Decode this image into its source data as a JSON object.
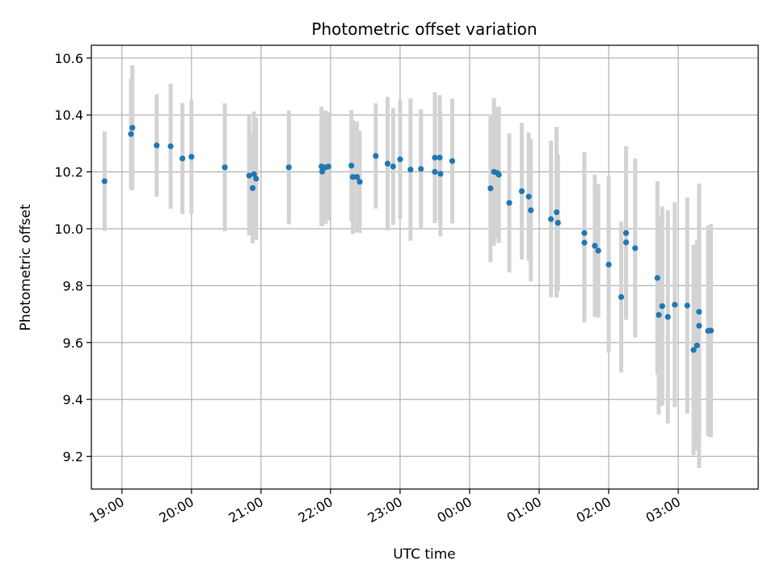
{
  "chart_data": {
    "type": "scatter",
    "title": "Photometric offset variation",
    "xlabel": "UTC time",
    "ylabel": "Photometric offset",
    "xlim": [
      -5.44,
      4.15
    ],
    "ylim": [
      9.085,
      10.645
    ],
    "grid": true,
    "x_ticks": [
      {
        "value": -5,
        "label": "19:00"
      },
      {
        "value": -4,
        "label": "20:00"
      },
      {
        "value": -3,
        "label": "21:00"
      },
      {
        "value": -2,
        "label": "22:00"
      },
      {
        "value": -1,
        "label": "23:00"
      },
      {
        "value": 0,
        "label": "00:00"
      },
      {
        "value": 1,
        "label": "01:00"
      },
      {
        "value": 2,
        "label": "02:00"
      },
      {
        "value": 3,
        "label": "03:00"
      }
    ],
    "y_ticks": [
      9.2,
      9.4,
      9.6,
      9.8,
      10.0,
      10.2,
      10.4,
      10.6
    ],
    "y_tick_labels": [
      "9.2",
      "9.4",
      "9.6",
      "9.8",
      "10.0",
      "10.2",
      "10.4",
      "10.6"
    ],
    "marker_color": "#1f77b4",
    "errorbar_color": "#d3d3d3",
    "series": [
      {
        "points": [
          {
            "x": -5.25,
            "y": 10.167,
            "err": 0.175
          },
          {
            "x": -4.87,
            "y": 10.333,
            "err": 0.195
          },
          {
            "x": -4.85,
            "y": 10.355,
            "err": 0.22
          },
          {
            "x": -4.5,
            "y": 10.293,
            "err": 0.18
          },
          {
            "x": -4.3,
            "y": 10.29,
            "err": 0.22
          },
          {
            "x": -4.13,
            "y": 10.247,
            "err": 0.195
          },
          {
            "x": -4.0,
            "y": 10.253,
            "err": 0.2
          },
          {
            "x": -3.52,
            "y": 10.216,
            "err": 0.225
          },
          {
            "x": -3.17,
            "y": 10.187,
            "err": 0.21
          },
          {
            "x": -3.12,
            "y": 10.143,
            "err": 0.195
          },
          {
            "x": -3.1,
            "y": 10.192,
            "err": 0.22
          },
          {
            "x": -3.07,
            "y": 10.176,
            "err": 0.215
          },
          {
            "x": -2.6,
            "y": 10.216,
            "err": 0.2
          },
          {
            "x": -2.13,
            "y": 10.219,
            "err": 0.21
          },
          {
            "x": -2.12,
            "y": 10.201,
            "err": 0.19
          },
          {
            "x": -2.07,
            "y": 10.216,
            "err": 0.2
          },
          {
            "x": -2.03,
            "y": 10.219,
            "err": 0.19
          },
          {
            "x": -1.7,
            "y": 10.222,
            "err": 0.195
          },
          {
            "x": -1.68,
            "y": 10.182,
            "err": 0.2
          },
          {
            "x": -1.62,
            "y": 10.182,
            "err": 0.195
          },
          {
            "x": -1.58,
            "y": 10.165,
            "err": 0.18
          },
          {
            "x": -1.35,
            "y": 10.256,
            "err": 0.185
          },
          {
            "x": -1.18,
            "y": 10.229,
            "err": 0.235
          },
          {
            "x": -1.1,
            "y": 10.219,
            "err": 0.205
          },
          {
            "x": -1.0,
            "y": 10.244,
            "err": 0.21
          },
          {
            "x": -0.85,
            "y": 10.208,
            "err": 0.25
          },
          {
            "x": -0.7,
            "y": 10.21,
            "err": 0.21
          },
          {
            "x": -0.5,
            "y": 10.25,
            "err": 0.23
          },
          {
            "x": -0.5,
            "y": 10.2,
            "err": 0.18
          },
          {
            "x": -0.43,
            "y": 10.25,
            "err": 0.22
          },
          {
            "x": -0.42,
            "y": 10.193,
            "err": 0.22
          },
          {
            "x": -0.25,
            "y": 10.238,
            "err": 0.22
          },
          {
            "x": 0.3,
            "y": 10.142,
            "err": 0.26
          },
          {
            "x": 0.35,
            "y": 10.2,
            "err": 0.26
          },
          {
            "x": 0.4,
            "y": 10.196,
            "err": 0.23
          },
          {
            "x": 0.42,
            "y": 10.19,
            "err": 0.24
          },
          {
            "x": 0.57,
            "y": 10.091,
            "err": 0.245
          },
          {
            "x": 0.75,
            "y": 10.132,
            "err": 0.24
          },
          {
            "x": 0.85,
            "y": 10.113,
            "err": 0.225
          },
          {
            "x": 0.88,
            "y": 10.065,
            "err": 0.25
          },
          {
            "x": 1.17,
            "y": 10.034,
            "err": 0.275
          },
          {
            "x": 1.25,
            "y": 10.058,
            "err": 0.3
          },
          {
            "x": 1.27,
            "y": 10.021,
            "err": 0.24
          },
          {
            "x": 1.65,
            "y": 9.985,
            "err": 0.285
          },
          {
            "x": 1.65,
            "y": 9.951,
            "err": 0.28
          },
          {
            "x": 1.8,
            "y": 9.94,
            "err": 0.25
          },
          {
            "x": 1.85,
            "y": 9.923,
            "err": 0.235
          },
          {
            "x": 2.0,
            "y": 9.874,
            "err": 0.31
          },
          {
            "x": 2.18,
            "y": 9.76,
            "err": 0.265
          },
          {
            "x": 2.25,
            "y": 9.985,
            "err": 0.305
          },
          {
            "x": 2.25,
            "y": 9.952,
            "err": 0.26
          },
          {
            "x": 2.38,
            "y": 9.932,
            "err": 0.315
          },
          {
            "x": 2.7,
            "y": 9.827,
            "err": 0.34
          },
          {
            "x": 2.72,
            "y": 9.697,
            "err": 0.35
          },
          {
            "x": 2.77,
            "y": 9.728,
            "err": 0.35
          },
          {
            "x": 2.85,
            "y": 9.69,
            "err": 0.375
          },
          {
            "x": 2.95,
            "y": 9.733,
            "err": 0.36
          },
          {
            "x": 3.13,
            "y": 9.73,
            "err": 0.38
          },
          {
            "x": 3.22,
            "y": 9.574,
            "err": 0.37
          },
          {
            "x": 3.27,
            "y": 9.59,
            "err": 0.37
          },
          {
            "x": 3.3,
            "y": 9.659,
            "err": 0.5
          },
          {
            "x": 3.3,
            "y": 9.708,
            "err": 0.43
          },
          {
            "x": 3.43,
            "y": 9.641,
            "err": 0.37
          },
          {
            "x": 3.47,
            "y": 9.642,
            "err": 0.375
          }
        ]
      }
    ]
  }
}
